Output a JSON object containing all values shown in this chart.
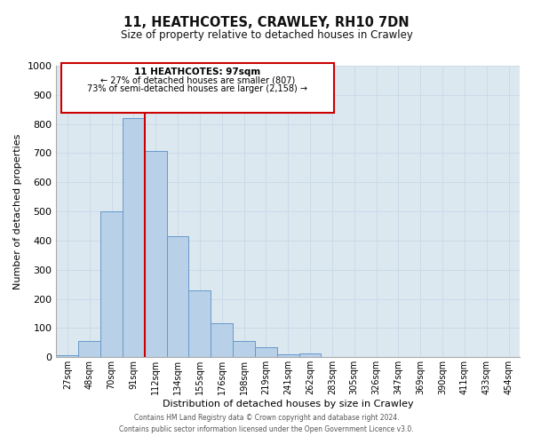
{
  "title": "11, HEATHCOTES, CRAWLEY, RH10 7DN",
  "subtitle": "Size of property relative to detached houses in Crawley",
  "xlabel": "Distribution of detached houses by size in Crawley",
  "ylabel": "Number of detached properties",
  "bar_labels": [
    "27sqm",
    "48sqm",
    "70sqm",
    "91sqm",
    "112sqm",
    "134sqm",
    "155sqm",
    "176sqm",
    "198sqm",
    "219sqm",
    "241sqm",
    "262sqm",
    "283sqm",
    "305sqm",
    "326sqm",
    "347sqm",
    "369sqm",
    "390sqm",
    "411sqm",
    "433sqm",
    "454sqm"
  ],
  "bar_values": [
    8,
    55,
    500,
    820,
    708,
    415,
    230,
    118,
    55,
    35,
    10,
    12,
    0,
    0,
    0,
    0,
    0,
    0,
    0,
    0,
    0
  ],
  "bar_color": "#b8d0e8",
  "bar_edge_color": "#6699cc",
  "property_line_color": "#cc0000",
  "annotation_label": "11 HEATHCOTES: 97sqm",
  "annotation_line1": "← 27% of detached houses are smaller (807)",
  "annotation_line2": "73% of semi-detached houses are larger (2,158) →",
  "ylim": [
    0,
    1000
  ],
  "yticks": [
    0,
    100,
    200,
    300,
    400,
    500,
    600,
    700,
    800,
    900,
    1000
  ],
  "grid_color": "#c8d8e8",
  "axes_bg_color": "#dce8f0",
  "background_color": "#ffffff",
  "footer_line1": "Contains HM Land Registry data © Crown copyright and database right 2024.",
  "footer_line2": "Contains public sector information licensed under the Open Government Licence v3.0.",
  "red_line_x": 3.5
}
